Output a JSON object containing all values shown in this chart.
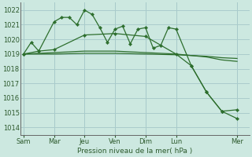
{
  "bg_color": "#cce8e0",
  "grid_color": "#aacccc",
  "line_color": "#2d6e2d",
  "ylim": [
    1013.5,
    1022.5
  ],
  "xlabel": "Pression niveau de la mer( hPa )",
  "ytick_labels": [
    1014,
    1015,
    1016,
    1017,
    1018,
    1019,
    1020,
    1021,
    1022
  ],
  "xtick_labels": [
    "Sam",
    "Mar",
    "Jeu",
    "Ven",
    "Dim",
    "Lun",
    "Mer"
  ],
  "xtick_positions": [
    0,
    2,
    4,
    6,
    8,
    10,
    14
  ],
  "xlim": [
    -0.2,
    14.8
  ],
  "series1_x": [
    0,
    0.5,
    1,
    2,
    2.5,
    3,
    3.5,
    4,
    4.5,
    5,
    5.5,
    6,
    6.5,
    7,
    7.5,
    8,
    8.5,
    9,
    9.5,
    10,
    11,
    12,
    13,
    14
  ],
  "series1_y": [
    1019.0,
    1019.8,
    1019.2,
    1021.2,
    1021.5,
    1021.5,
    1021.0,
    1022.0,
    1021.7,
    1020.8,
    1019.8,
    1020.7,
    1020.9,
    1019.7,
    1020.7,
    1020.8,
    1019.4,
    1019.6,
    1020.8,
    1020.7,
    1018.2,
    1016.4,
    1015.1,
    1014.6
  ],
  "series2_x": [
    0,
    1,
    2,
    4,
    6,
    8,
    10,
    11,
    12,
    13,
    14
  ],
  "series2_y": [
    1019.0,
    1019.2,
    1019.3,
    1020.3,
    1020.4,
    1020.2,
    1019.0,
    1018.2,
    1016.4,
    1015.1,
    1015.2
  ],
  "series3_x": [
    0,
    2,
    4,
    6,
    8,
    10,
    12,
    13,
    14
  ],
  "series3_y": [
    1019.0,
    1019.1,
    1019.2,
    1019.2,
    1019.1,
    1019.0,
    1018.8,
    1018.6,
    1018.5
  ],
  "series4_x": [
    0,
    2,
    4,
    6,
    8,
    10,
    12,
    13,
    14
  ],
  "series4_y": [
    1019.0,
    1019.0,
    1019.05,
    1019.05,
    1019.0,
    1018.95,
    1018.85,
    1018.75,
    1018.7
  ]
}
